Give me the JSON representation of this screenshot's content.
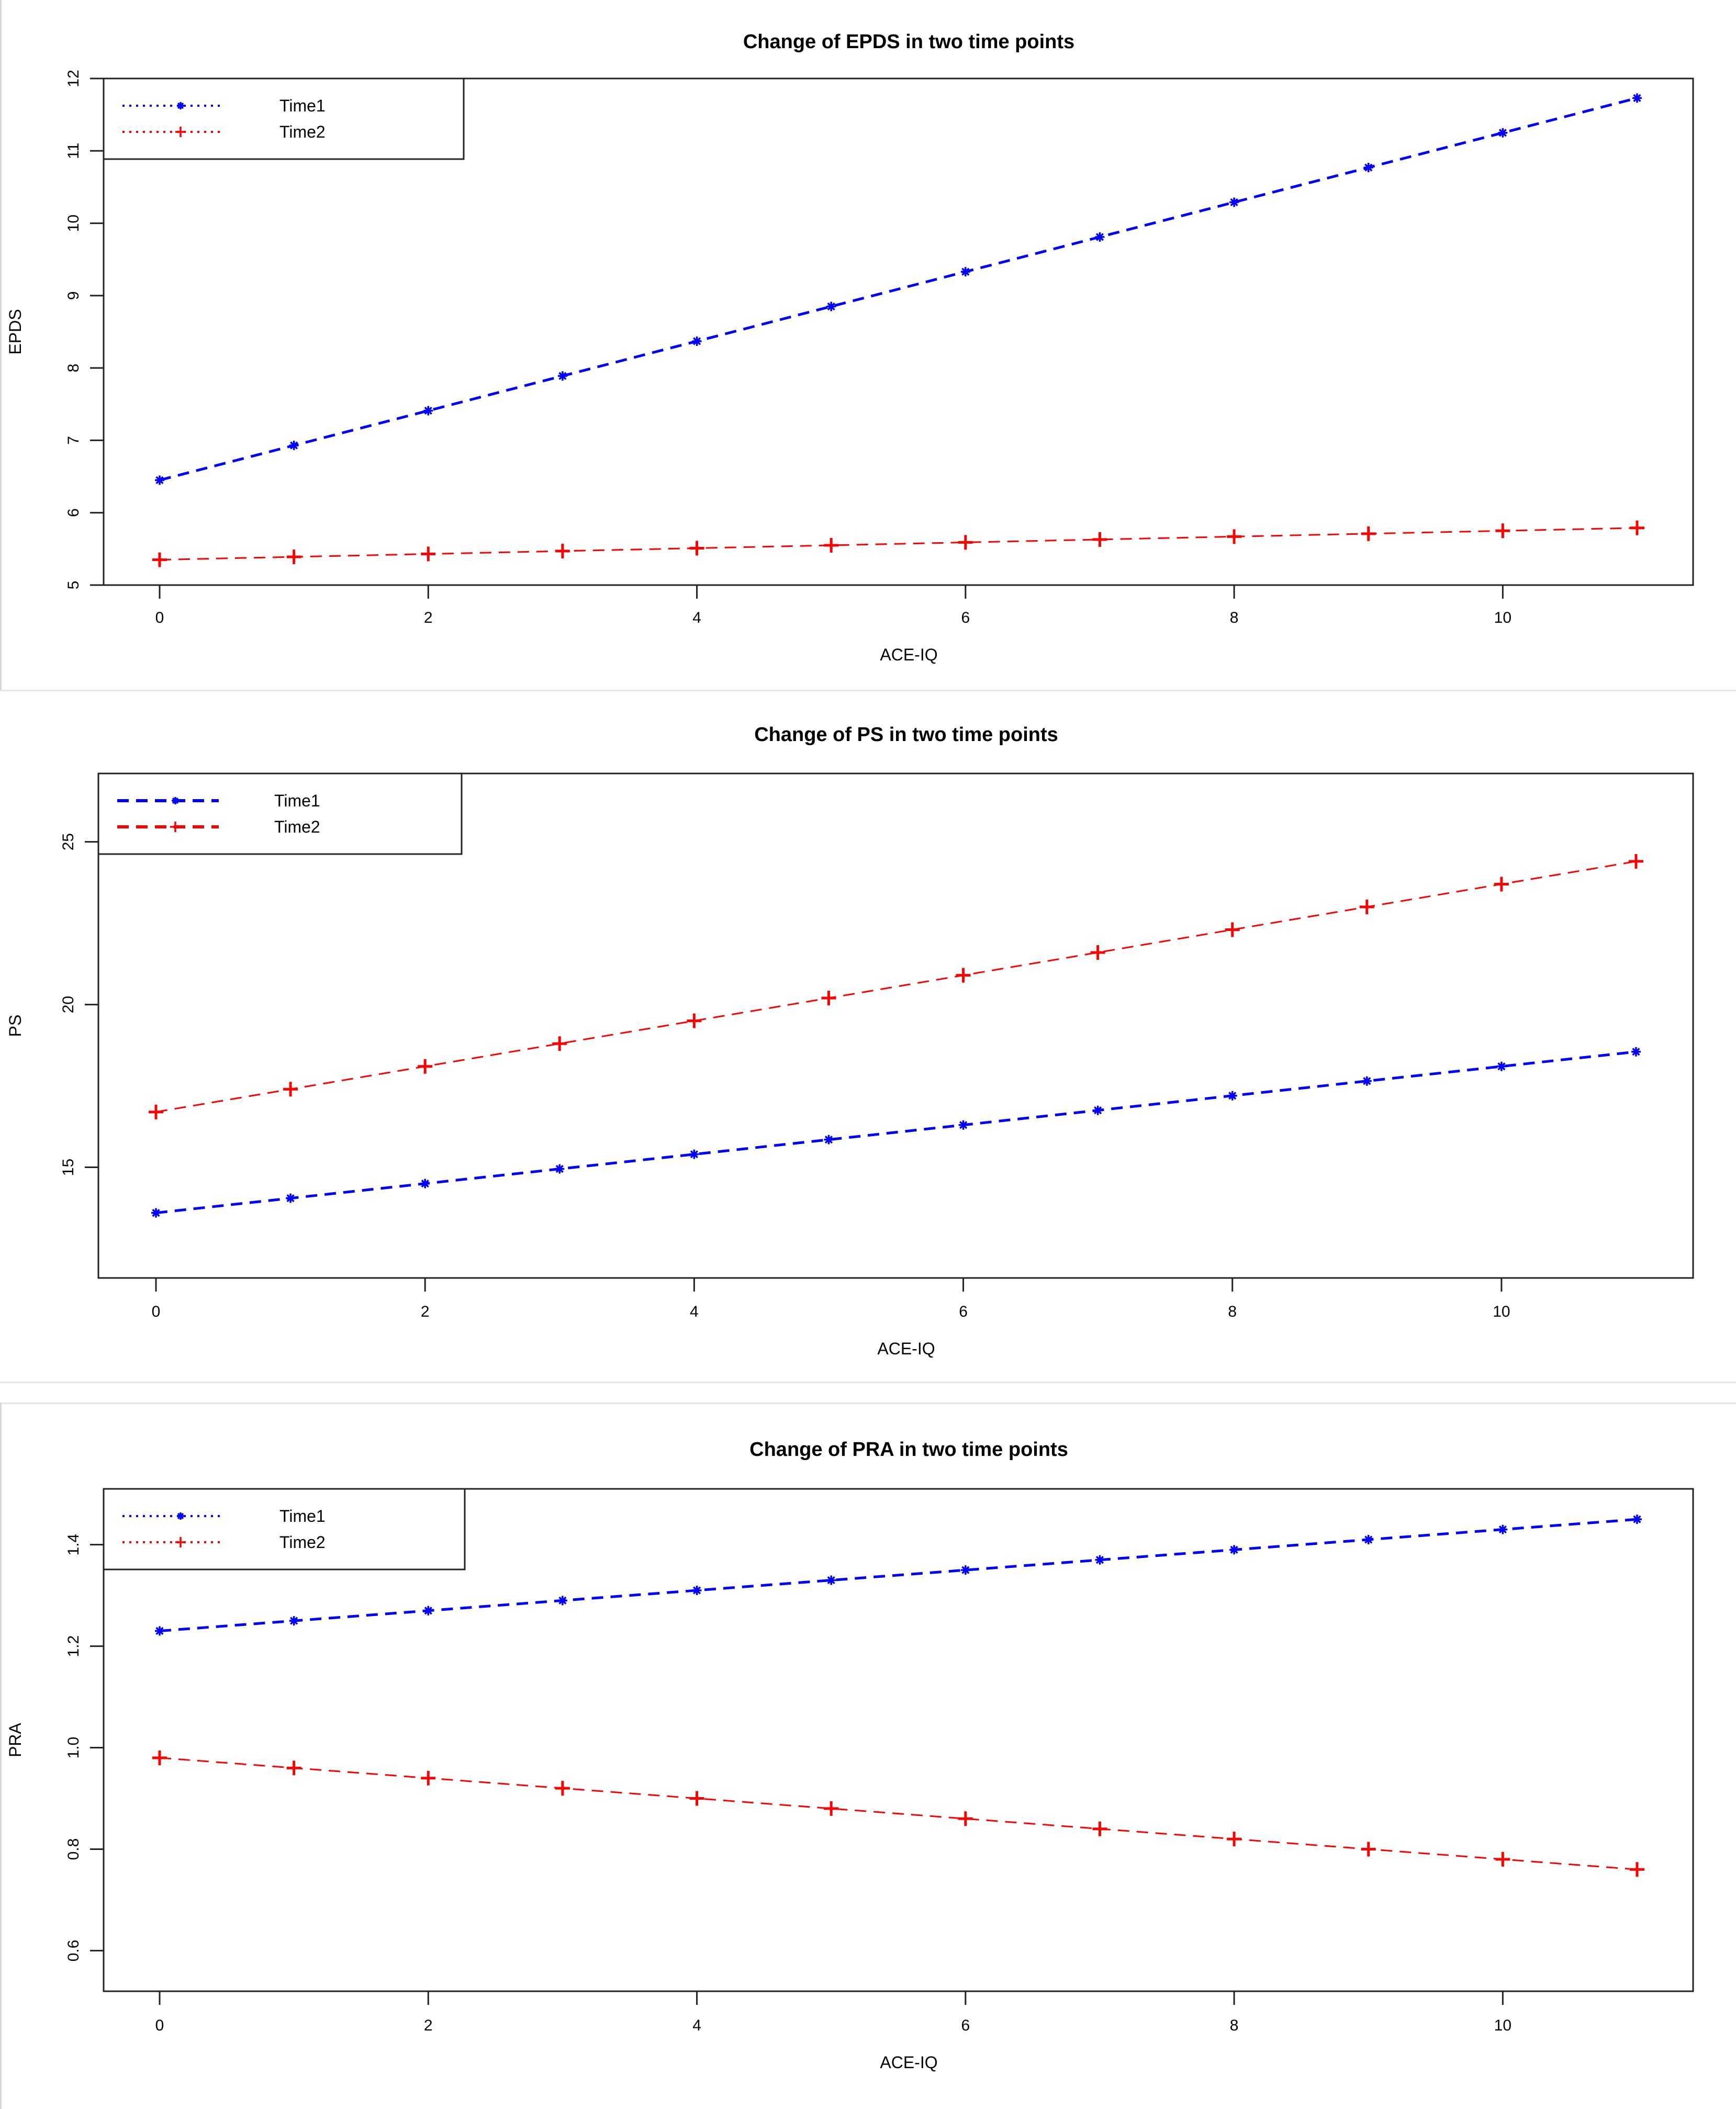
{
  "chart_data": [
    {
      "type": "line",
      "title": "Change of EPDS in two time points",
      "xlabel": "ACE-IQ",
      "ylabel": "EPDS",
      "x": [
        0,
        1,
        2,
        3,
        4,
        5,
        6,
        7,
        8,
        9,
        10,
        11
      ],
      "xlim": [
        0,
        11
      ],
      "ylim": [
        5,
        12
      ],
      "xticks": [
        "0",
        "2",
        "4",
        "6",
        "8",
        "10"
      ],
      "yticks": [
        "5",
        "6",
        "7",
        "8",
        "9",
        "10",
        "11",
        "12"
      ],
      "legend_position": "top-left",
      "grid": false,
      "series": [
        {
          "name": "Time1",
          "color": "#0000ff",
          "line_style": "dashed",
          "legend_line_style": "dotted",
          "marker": "star",
          "values": [
            6.45,
            6.93,
            7.41,
            7.89,
            8.37,
            8.85,
            9.33,
            9.81,
            10.29,
            10.77,
            11.25,
            11.73
          ]
        },
        {
          "name": "Time2",
          "color": "#ff0000",
          "line_style": "dashed",
          "legend_line_style": "dotted",
          "marker": "plus",
          "values": [
            5.35,
            5.39,
            5.43,
            5.47,
            5.51,
            5.55,
            5.59,
            5.63,
            5.67,
            5.71,
            5.75,
            5.79
          ]
        }
      ]
    },
    {
      "type": "line",
      "title": "Change of PS in two time points",
      "xlabel": "ACE-IQ",
      "ylabel": "PS",
      "x": [
        0,
        1,
        2,
        3,
        4,
        5,
        6,
        7,
        8,
        9,
        10,
        11
      ],
      "xlim": [
        0,
        11
      ],
      "ylim": [
        11.6,
        27.1
      ],
      "xticks": [
        "0",
        "2",
        "4",
        "6",
        "8",
        "10"
      ],
      "yticks": [
        "15",
        "20",
        "25"
      ],
      "legend_position": "top-left",
      "grid": false,
      "series": [
        {
          "name": "Time1",
          "color": "#0000ff",
          "line_style": "dashed",
          "legend_line_style": "dashed",
          "marker": "star",
          "values": [
            13.6,
            14.05,
            14.5,
            14.95,
            15.4,
            15.85,
            16.3,
            16.75,
            17.2,
            17.65,
            18.1,
            18.55
          ]
        },
        {
          "name": "Time2",
          "color": "#ff0000",
          "line_style": "dashed",
          "legend_line_style": "dashed",
          "marker": "plus",
          "values": [
            16.7,
            17.4,
            18.1,
            18.8,
            19.5,
            20.2,
            20.9,
            21.6,
            22.3,
            23.0,
            23.7,
            24.4
          ]
        }
      ]
    },
    {
      "type": "line",
      "title": "Change of PRA in two time points",
      "xlabel": "ACE-IQ",
      "ylabel": "PRA",
      "x": [
        0,
        1,
        2,
        3,
        4,
        5,
        6,
        7,
        8,
        9,
        10,
        11
      ],
      "xlim": [
        0,
        11
      ],
      "ylim": [
        0.52,
        1.51
      ],
      "xticks": [
        "0",
        "2",
        "4",
        "6",
        "8",
        "10"
      ],
      "yticks": [
        "0.6",
        "0.8",
        "1.0",
        "1.2",
        "1.4"
      ],
      "legend_position": "top-left",
      "grid": false,
      "series": [
        {
          "name": "Time1",
          "color": "#0000ff",
          "line_style": "dashed",
          "legend_line_style": "dotted",
          "marker": "star",
          "values": [
            1.23,
            1.25,
            1.27,
            1.29,
            1.31,
            1.33,
            1.35,
            1.37,
            1.39,
            1.41,
            1.43,
            1.45
          ]
        },
        {
          "name": "Time2",
          "color": "#ff0000",
          "line_style": "dashed",
          "legend_line_style": "dotted",
          "marker": "plus",
          "values": [
            0.98,
            0.96,
            0.94,
            0.92,
            0.9,
            0.88,
            0.86,
            0.84,
            0.82,
            0.8,
            0.78,
            0.76
          ]
        }
      ]
    }
  ]
}
